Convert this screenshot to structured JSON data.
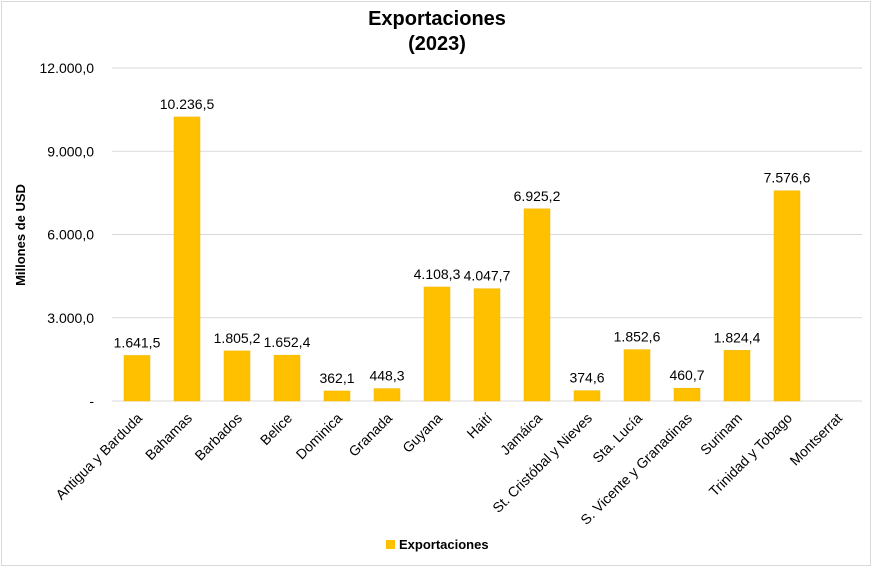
{
  "chart_data": {
    "type": "bar",
    "title": [
      "Exportaciones",
      "(2023)"
    ],
    "ylabel": "Millones de USD",
    "xlabel": "",
    "ylim": [
      0,
      12000
    ],
    "yticks": [
      0,
      3000,
      6000,
      9000,
      12000
    ],
    "ytick_labels": [
      "-",
      "3.000,0",
      "6.000,0",
      "9.000,0",
      "12.000,0"
    ],
    "grid": true,
    "legend_position": "bottom",
    "categories": [
      "Antigua y Barduda",
      "Bahamas",
      "Barbados",
      "Belice",
      "Dominica",
      "Granada",
      "Guyana",
      "Haití",
      "Jamáica",
      "St. Cristóbal y Nieves",
      "Sta. Lucía",
      "S. Vicente y Granadinas",
      "Surinam",
      "Trinidad y Tobago",
      "Montserrat"
    ],
    "series": [
      {
        "name": "Exportaciones",
        "color": "#ffc000",
        "values": [
          1641.5,
          10236.5,
          1805.2,
          1652.4,
          362.1,
          448.3,
          4108.3,
          4047.7,
          6925.2,
          374.6,
          1852.6,
          460.7,
          1824.4,
          7576.6,
          null
        ],
        "labels": [
          "1.641,5",
          "10.236,5",
          "1.805,2",
          "1.652,4",
          "362,1",
          "448,3",
          "4.108,3",
          "4.047,7",
          "6.925,2",
          "374,6",
          "1.852,6",
          "460,7",
          "1.824,4",
          "7.576,6",
          ""
        ]
      }
    ]
  }
}
